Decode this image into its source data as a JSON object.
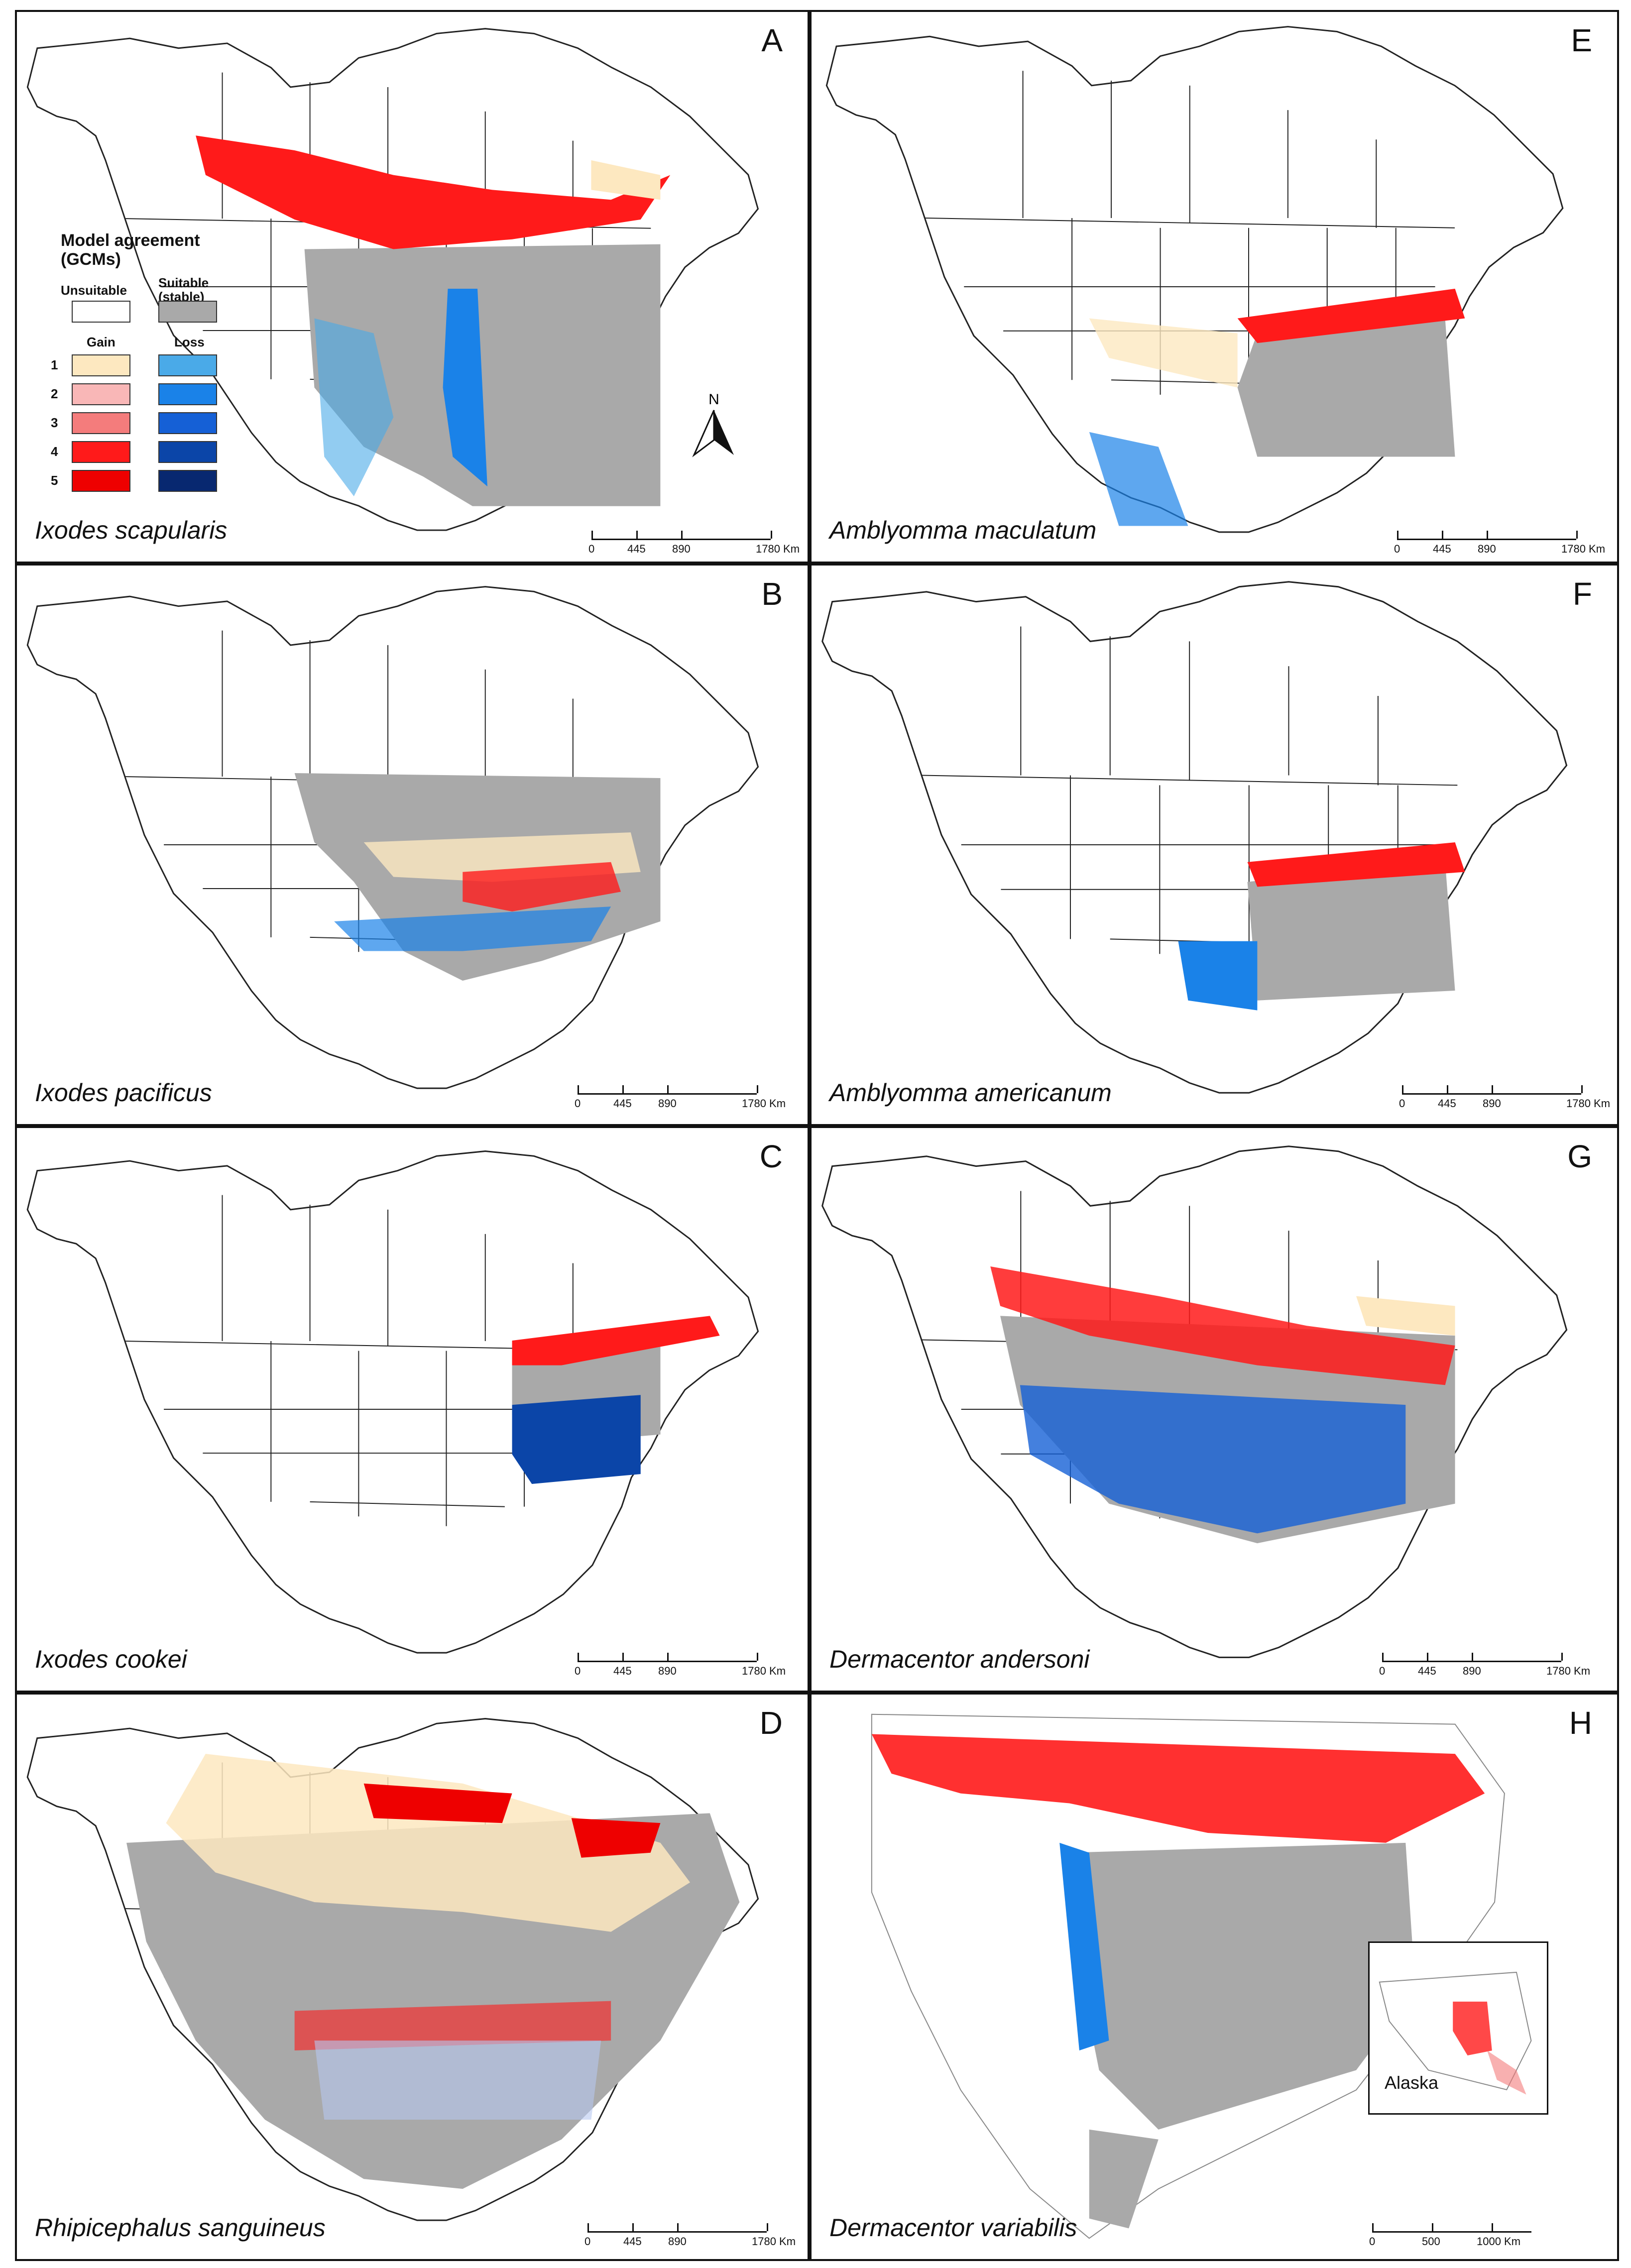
{
  "figure": {
    "panels": [
      {
        "letter": "A",
        "species": "Ixodes scapularis"
      },
      {
        "letter": "B",
        "species": "Ixodes pacificus"
      },
      {
        "letter": "C",
        "species": "Ixodes cookei"
      },
      {
        "letter": "D",
        "species": "Rhipicephalus sanguineus"
      },
      {
        "letter": "E",
        "species": "Amblyomma maculatum"
      },
      {
        "letter": "F",
        "species": "Amblyomma americanum"
      },
      {
        "letter": "G",
        "species": "Dermacentor andersoni"
      },
      {
        "letter": "H",
        "species": "Dermacentor variabilis"
      }
    ],
    "scalebar": {
      "ticks": [
        "0",
        "445",
        "890",
        "1780 Km"
      ]
    },
    "scalebar_h": {
      "ticks": [
        "0",
        "500",
        "1000 Km"
      ]
    },
    "inset_label": "Alaska",
    "north_label": "N"
  },
  "legend": {
    "title_line1": "Model agreement",
    "title_line2": "(GCMs)",
    "unsuitable": "Unsuitable",
    "suitable_line1": "Suitable",
    "suitable_line2": "(stable)",
    "gain": "Gain",
    "loss": "Loss",
    "levels": [
      "1",
      "2",
      "3",
      "4",
      "5"
    ],
    "gain_colors": [
      "#fde8c0",
      "#f9b7b7",
      "#f47c7c",
      "#ff1a1a",
      "#ee0000"
    ],
    "loss_colors": [
      "#4aaae8",
      "#1a82e8",
      "#1560d6",
      "#0b45a8",
      "#082870"
    ],
    "suitable_color": "#a9a9a9"
  }
}
